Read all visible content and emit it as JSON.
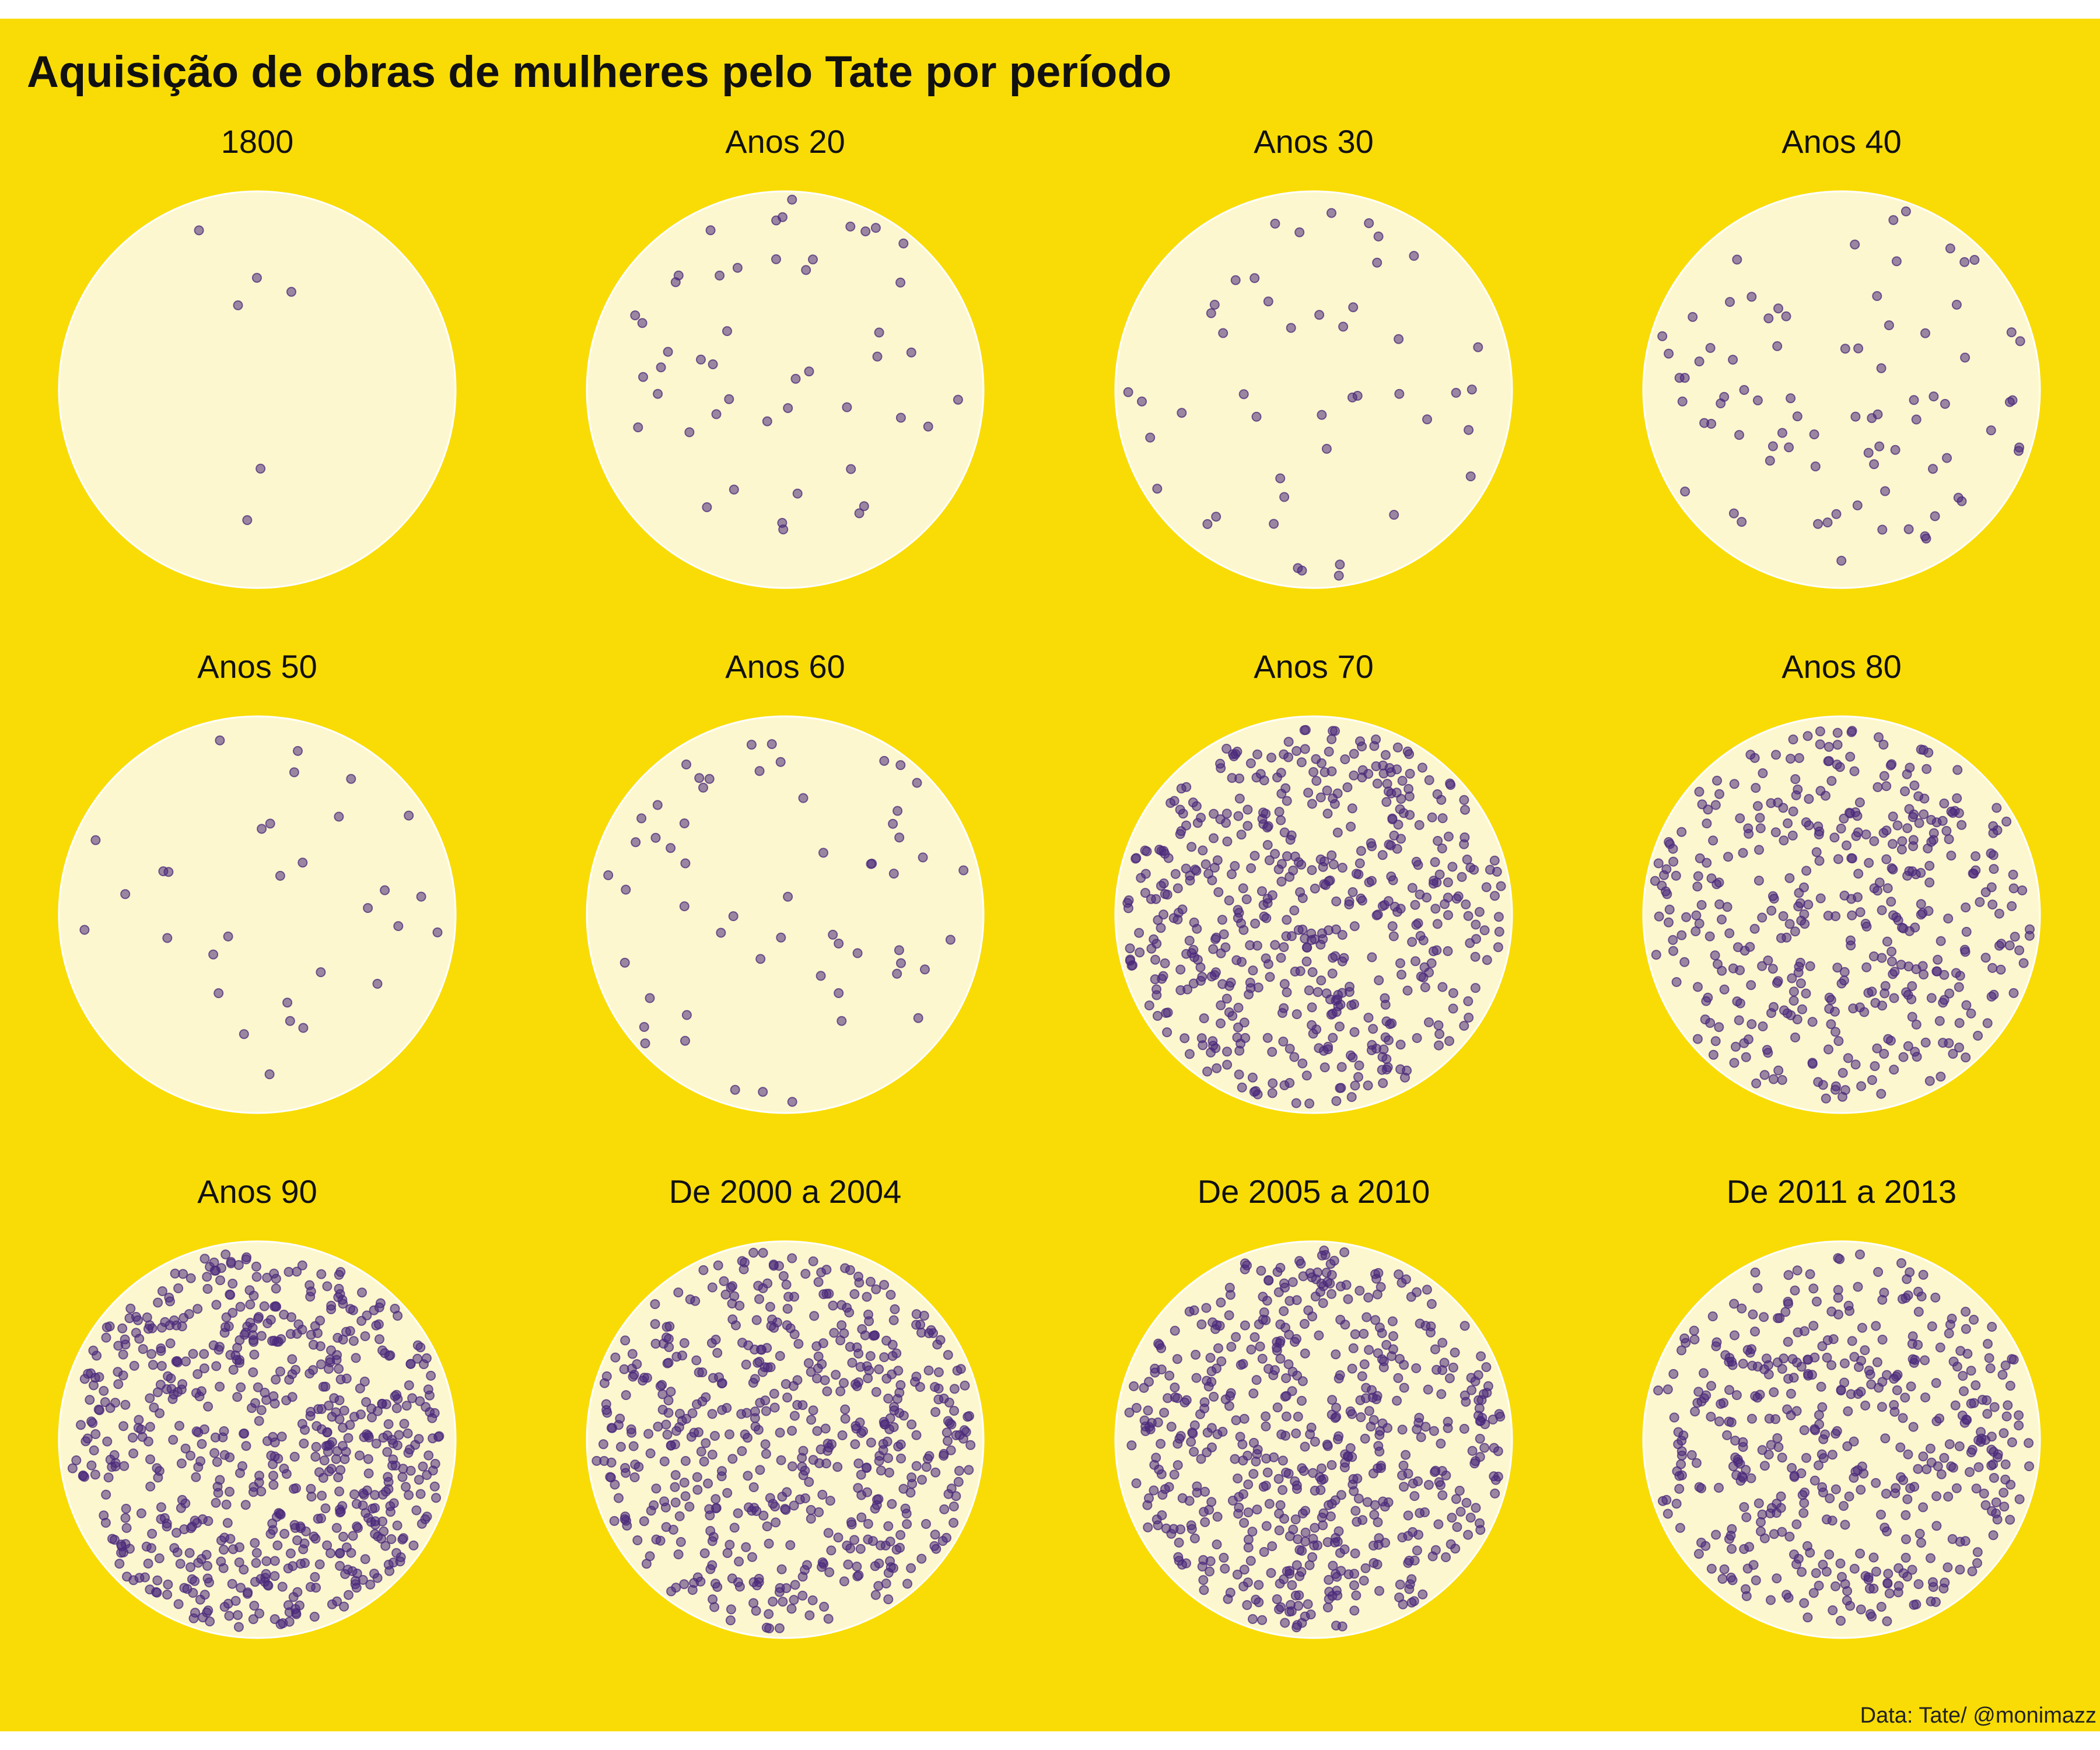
{
  "chart_data": {
    "type": "scatter",
    "title": "Aquisição de obras de mulheres pelo Tate por período",
    "caption": "Data: Tate/ @monimazz",
    "colors": {
      "background": "#f9dc05",
      "circle_fill": "#fdf7cf",
      "circle_stroke": "#ffffff",
      "point": "#4b2a7b"
    },
    "grid": false,
    "legend": "none",
    "facets": [
      {
        "label": "1800",
        "count": 6
      },
      {
        "label": "Anos 20",
        "count": 48
      },
      {
        "label": "Anos 30",
        "count": 46
      },
      {
        "label": "Anos 40",
        "count": 82
      },
      {
        "label": "Anos 50",
        "count": 31
      },
      {
        "label": "Anos 60",
        "count": 57
      },
      {
        "label": "Anos 70",
        "count": 540
      },
      {
        "label": "Anos 80",
        "count": 420
      },
      {
        "label": "Anos 90",
        "count": 680
      },
      {
        "label": "De 2000 a 2004",
        "count": 560
      },
      {
        "label": "De 2005 a 2010",
        "count": 590
      },
      {
        "label": "De 2011 a 2013",
        "count": 470
      }
    ]
  }
}
